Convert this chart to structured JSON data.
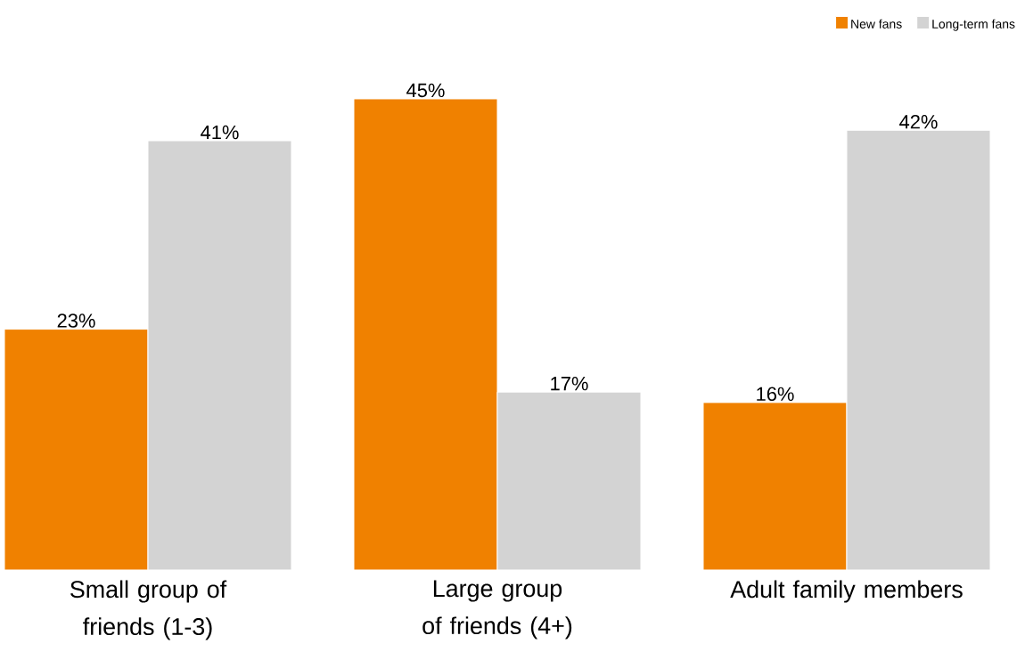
{
  "chart_data": {
    "type": "bar",
    "categories": [
      "Small group of friends (1-3)",
      "Large group of friends (4+)",
      "Adult family members"
    ],
    "series": [
      {
        "name": "New fans",
        "color": "#f08100",
        "values": [
          23,
          45,
          16
        ],
        "value_labels": [
          "23%",
          "45%",
          "16%"
        ]
      },
      {
        "name": "Long-term fans",
        "color": "#d3d3d3",
        "values": [
          41,
          17,
          42
        ],
        "value_labels": [
          "41%",
          "17%",
          "42%"
        ]
      }
    ],
    "ylim": [
      0,
      45
    ],
    "legend": "top right"
  }
}
